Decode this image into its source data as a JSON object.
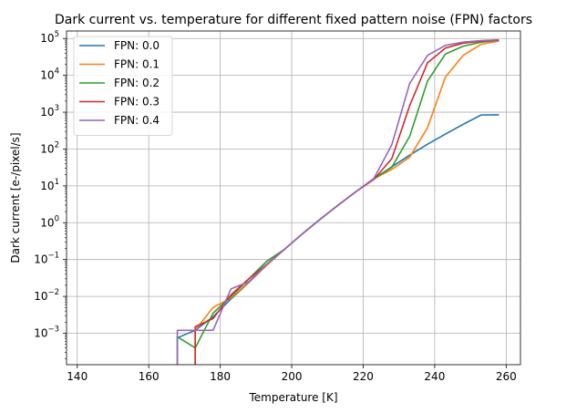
{
  "chart_data": {
    "type": "line",
    "title": "Dark current vs. temperature for different fixed pattern noise (FPN) factors",
    "xlabel": "Temperature [K]",
    "ylabel": "Dark current [e-/pixel/s]",
    "xlim": [
      137,
      264
    ],
    "ylim": [
      0.00014,
      160000
    ],
    "yscale": "log",
    "grid": true,
    "legend_position": "upper-left",
    "x_ticks": [
      140,
      160,
      180,
      200,
      220,
      240,
      260
    ],
    "y_ticks": [
      {
        "value": 0.001,
        "base": "10",
        "exp": "−3"
      },
      {
        "value": 0.01,
        "base": "10",
        "exp": "−2"
      },
      {
        "value": 0.1,
        "base": "10",
        "exp": "−1"
      },
      {
        "value": 1,
        "base": "10",
        "exp": "0"
      },
      {
        "value": 10,
        "base": "10",
        "exp": "1"
      },
      {
        "value": 100,
        "base": "10",
        "exp": "2"
      },
      {
        "value": 1000,
        "base": "10",
        "exp": "3"
      },
      {
        "value": 10000,
        "base": "10",
        "exp": "4"
      },
      {
        "value": 100000,
        "base": "10",
        "exp": "5"
      }
    ],
    "series": [
      {
        "name": "FPN: 0.0",
        "color": "#1f77b4",
        "points": [
          [
            168,
            0.00075
          ],
          [
            173,
            0.0012
          ],
          [
            178,
            0.0028
          ],
          [
            183,
            0.0085
          ],
          [
            188,
            0.024
          ],
          [
            193,
            0.07
          ],
          [
            198,
            0.19
          ],
          [
            203,
            0.5
          ],
          [
            208,
            1.25
          ],
          [
            213,
            3.0
          ],
          [
            218,
            7.0
          ],
          [
            223,
            15.5
          ],
          [
            228,
            33
          ],
          [
            233,
            68
          ],
          [
            238,
            135
          ],
          [
            243,
            255
          ],
          [
            248,
            470
          ],
          [
            253,
            840
          ],
          [
            258,
            850
          ]
        ]
      },
      {
        "name": "FPN: 0.1",
        "color": "#ff7f0e",
        "points": [
          [
            173,
            0.0001
          ],
          [
            173,
            0.0012
          ],
          [
            178,
            0.005
          ],
          [
            183,
            0.009
          ],
          [
            188,
            0.025
          ],
          [
            193,
            0.07
          ],
          [
            198,
            0.19
          ],
          [
            203,
            0.5
          ],
          [
            208,
            1.25
          ],
          [
            213,
            3.0
          ],
          [
            218,
            7.0
          ],
          [
            223,
            15.5
          ],
          [
            228,
            28
          ],
          [
            233,
            60
          ],
          [
            238,
            380
          ],
          [
            243,
            9000
          ],
          [
            248,
            35000
          ],
          [
            253,
            70000
          ],
          [
            258,
            85000
          ]
        ]
      },
      {
        "name": "FPN: 0.2",
        "color": "#2ca02c",
        "points": [
          [
            168,
            0.0001
          ],
          [
            168,
            0.0008
          ],
          [
            173,
            0.0004
          ],
          [
            178,
            0.0035
          ],
          [
            183,
            0.01
          ],
          [
            188,
            0.03
          ],
          [
            193,
            0.09
          ],
          [
            198,
            0.19
          ],
          [
            203,
            0.5
          ],
          [
            208,
            1.25
          ],
          [
            213,
            3.0
          ],
          [
            218,
            7.0
          ],
          [
            223,
            15.5
          ],
          [
            228,
            32
          ],
          [
            233,
            220
          ],
          [
            238,
            7000
          ],
          [
            243,
            38000
          ],
          [
            248,
            62000
          ],
          [
            253,
            80000
          ],
          [
            258,
            90000
          ]
        ]
      },
      {
        "name": "FPN: 0.3",
        "color": "#d62728",
        "points": [
          [
            173,
            0.0001
          ],
          [
            173,
            0.0015
          ],
          [
            178,
            0.0025
          ],
          [
            183,
            0.011
          ],
          [
            188,
            0.03
          ],
          [
            193,
            0.075
          ],
          [
            198,
            0.19
          ],
          [
            203,
            0.5
          ],
          [
            208,
            1.25
          ],
          [
            213,
            3.0
          ],
          [
            218,
            7.0
          ],
          [
            223,
            15
          ],
          [
            228,
            55
          ],
          [
            233,
            1500
          ],
          [
            238,
            22000
          ],
          [
            243,
            55000
          ],
          [
            248,
            75000
          ],
          [
            253,
            85000
          ],
          [
            258,
            90000
          ]
        ]
      },
      {
        "name": "FPN: 0.4",
        "color": "#9467bd",
        "points": [
          [
            168,
            0.0001
          ],
          [
            168,
            0.0012
          ],
          [
            173,
            0.0012
          ],
          [
            178,
            0.0012
          ],
          [
            183,
            0.016
          ],
          [
            188,
            0.025
          ],
          [
            193,
            0.075
          ],
          [
            198,
            0.19
          ],
          [
            203,
            0.5
          ],
          [
            208,
            1.25
          ],
          [
            213,
            3.0
          ],
          [
            218,
            7.0
          ],
          [
            223,
            16
          ],
          [
            228,
            130
          ],
          [
            233,
            6000
          ],
          [
            238,
            35000
          ],
          [
            243,
            65000
          ],
          [
            248,
            80000
          ],
          [
            253,
            88000
          ],
          [
            258,
            92000
          ]
        ]
      }
    ]
  }
}
